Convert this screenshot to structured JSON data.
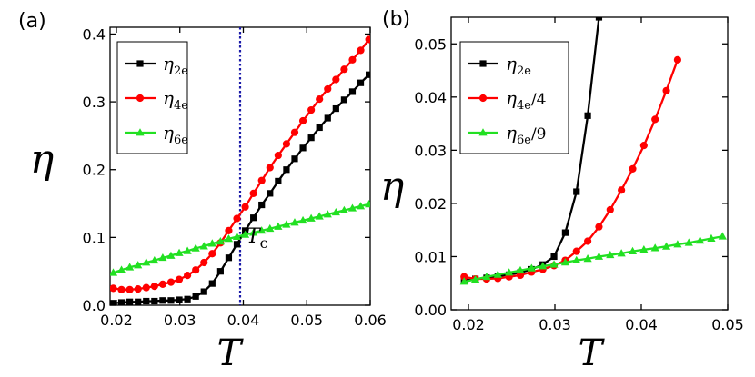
{
  "chart_data": [
    {
      "panel_label": "(a)",
      "type": "line",
      "xlabel": "T",
      "ylabel": "η",
      "xlim": [
        0.019,
        0.06
      ],
      "ylim": [
        0,
        0.41
      ],
      "xticks": [
        0.02,
        0.03,
        0.04,
        0.05,
        0.06
      ],
      "xtick_labels": [
        "0.02",
        "0.03",
        "0.04",
        "0.05",
        "0.06"
      ],
      "yticks": [
        0.0,
        0.1,
        0.2,
        0.3,
        0.4
      ],
      "ytick_labels": [
        "0.0",
        "0.1",
        "0.2",
        "0.3",
        "0.4"
      ],
      "legend_position": "top-left",
      "vline": {
        "x": 0.0395,
        "color": "#1a1aa8",
        "style": "dotted"
      },
      "annotations": [
        {
          "text": "T",
          "sub": "c",
          "x": 0.0405,
          "y": 0.13
        }
      ],
      "series": [
        {
          "name": "η",
          "name_sub": "2e",
          "name_suffix": "",
          "color": "#000000",
          "marker": "square",
          "x": [
            0.0195,
            0.0208,
            0.0221,
            0.0234,
            0.0247,
            0.026,
            0.0273,
            0.0286,
            0.0299,
            0.0312,
            0.0325,
            0.0338,
            0.0351,
            0.0364,
            0.0377,
            0.039,
            0.0403,
            0.0416,
            0.0429,
            0.0442,
            0.0455,
            0.0468,
            0.0481,
            0.0494,
            0.0507,
            0.052,
            0.0533,
            0.0546,
            0.0559,
            0.0572,
            0.0585,
            0.0598
          ],
          "y": [
            0.003,
            0.004,
            0.005,
            0.005,
            0.006,
            0.006,
            0.007,
            0.007,
            0.008,
            0.009,
            0.013,
            0.02,
            0.032,
            0.05,
            0.07,
            0.09,
            0.11,
            0.129,
            0.148,
            0.165,
            0.183,
            0.2,
            0.216,
            0.232,
            0.247,
            0.262,
            0.276,
            0.29,
            0.303,
            0.315,
            0.328,
            0.34
          ]
        },
        {
          "name": "η",
          "name_sub": "4e",
          "name_suffix": "",
          "color": "#ff0000",
          "marker": "circle",
          "x": [
            0.0195,
            0.0208,
            0.0221,
            0.0234,
            0.0247,
            0.026,
            0.0273,
            0.0286,
            0.0299,
            0.0312,
            0.0325,
            0.0338,
            0.0351,
            0.0364,
            0.0377,
            0.039,
            0.0403,
            0.0416,
            0.0429,
            0.0442,
            0.0455,
            0.0468,
            0.0481,
            0.0494,
            0.0507,
            0.052,
            0.0533,
            0.0546,
            0.0559,
            0.0572,
            0.0585,
            0.0598
          ],
          "y": [
            0.025,
            0.023,
            0.023,
            0.024,
            0.026,
            0.028,
            0.031,
            0.034,
            0.038,
            0.044,
            0.052,
            0.063,
            0.076,
            0.092,
            0.11,
            0.128,
            0.145,
            0.165,
            0.184,
            0.203,
            0.221,
            0.238,
            0.255,
            0.272,
            0.288,
            0.304,
            0.319,
            0.333,
            0.348,
            0.362,
            0.376,
            0.392
          ]
        },
        {
          "name": "η",
          "name_sub": "6e",
          "name_suffix": "",
          "color": "#22e022",
          "marker": "triangle",
          "x": [
            0.0195,
            0.0208,
            0.0221,
            0.0234,
            0.0247,
            0.026,
            0.0273,
            0.0286,
            0.0299,
            0.0312,
            0.0325,
            0.0338,
            0.0351,
            0.0364,
            0.0377,
            0.039,
            0.0403,
            0.0416,
            0.0429,
            0.0442,
            0.0455,
            0.0468,
            0.0481,
            0.0494,
            0.0507,
            0.052,
            0.0533,
            0.0546,
            0.0559,
            0.0572,
            0.0585,
            0.0598
          ],
          "y": [
            0.048,
            0.052,
            0.056,
            0.059,
            0.063,
            0.066,
            0.07,
            0.073,
            0.077,
            0.08,
            0.084,
            0.087,
            0.091,
            0.094,
            0.098,
            0.101,
            0.104,
            0.107,
            0.11,
            0.113,
            0.116,
            0.119,
            0.122,
            0.125,
            0.128,
            0.131,
            0.134,
            0.137,
            0.14,
            0.143,
            0.146,
            0.149
          ]
        }
      ]
    },
    {
      "panel_label": "(b)",
      "type": "line",
      "xlabel": "T",
      "ylabel": "η",
      "xlim": [
        0.018,
        0.05
      ],
      "ylim": [
        0,
        0.055
      ],
      "xticks": [
        0.02,
        0.03,
        0.04,
        0.05
      ],
      "xtick_labels": [
        "0.02",
        "0.03",
        "0.04",
        "0.05"
      ],
      "yticks": [
        0.0,
        0.01,
        0.02,
        0.03,
        0.04,
        0.05
      ],
      "ytick_labels": [
        "0.00",
        "0.01",
        "0.02",
        "0.03",
        "0.04",
        "0.05"
      ],
      "legend_position": "top-left",
      "series": [
        {
          "name": "η",
          "name_sub": "2e",
          "name_suffix": "",
          "color": "#000000",
          "marker": "square",
          "x": [
            0.0195,
            0.0208,
            0.0221,
            0.0234,
            0.0247,
            0.026,
            0.0273,
            0.0286,
            0.0299,
            0.0312,
            0.0325,
            0.0338,
            0.0351,
            0.0364
          ],
          "y": [
            0.0055,
            0.0058,
            0.006,
            0.0063,
            0.0066,
            0.007,
            0.0076,
            0.0085,
            0.01,
            0.0145,
            0.0222,
            0.0365,
            0.055,
            0.08
          ]
        },
        {
          "name": "η",
          "name_sub": "4e",
          "name_suffix": "/4",
          "color": "#ff0000",
          "marker": "circle",
          "x": [
            0.0195,
            0.0208,
            0.0221,
            0.0234,
            0.0247,
            0.026,
            0.0273,
            0.0286,
            0.0299,
            0.0312,
            0.0325,
            0.0338,
            0.0351,
            0.0364,
            0.0377,
            0.039,
            0.0403,
            0.0416,
            0.0429,
            0.0442
          ],
          "y": [
            0.0062,
            0.0058,
            0.0058,
            0.0059,
            0.0062,
            0.0065,
            0.0071,
            0.0076,
            0.0083,
            0.0093,
            0.011,
            0.0129,
            0.0156,
            0.0188,
            0.0225,
            0.0265,
            0.0309,
            0.0358,
            0.0412,
            0.047
          ]
        },
        {
          "name": "η",
          "name_sub": "6e",
          "name_suffix": "/9",
          "color": "#22e022",
          "marker": "triangle",
          "x": [
            0.0195,
            0.0208,
            0.0221,
            0.0234,
            0.0247,
            0.026,
            0.0273,
            0.0286,
            0.0299,
            0.0312,
            0.0325,
            0.0338,
            0.0351,
            0.0364,
            0.0377,
            0.039,
            0.0403,
            0.0416,
            0.0429,
            0.0442,
            0.0455,
            0.0468,
            0.0481,
            0.0494
          ],
          "y": [
            0.0053,
            0.0057,
            0.0062,
            0.0066,
            0.007,
            0.0074,
            0.0078,
            0.0082,
            0.0085,
            0.0089,
            0.0093,
            0.0096,
            0.01,
            0.0103,
            0.0106,
            0.011,
            0.0113,
            0.0116,
            0.0119,
            0.0123,
            0.0126,
            0.013,
            0.0134,
            0.0138
          ]
        }
      ]
    }
  ]
}
